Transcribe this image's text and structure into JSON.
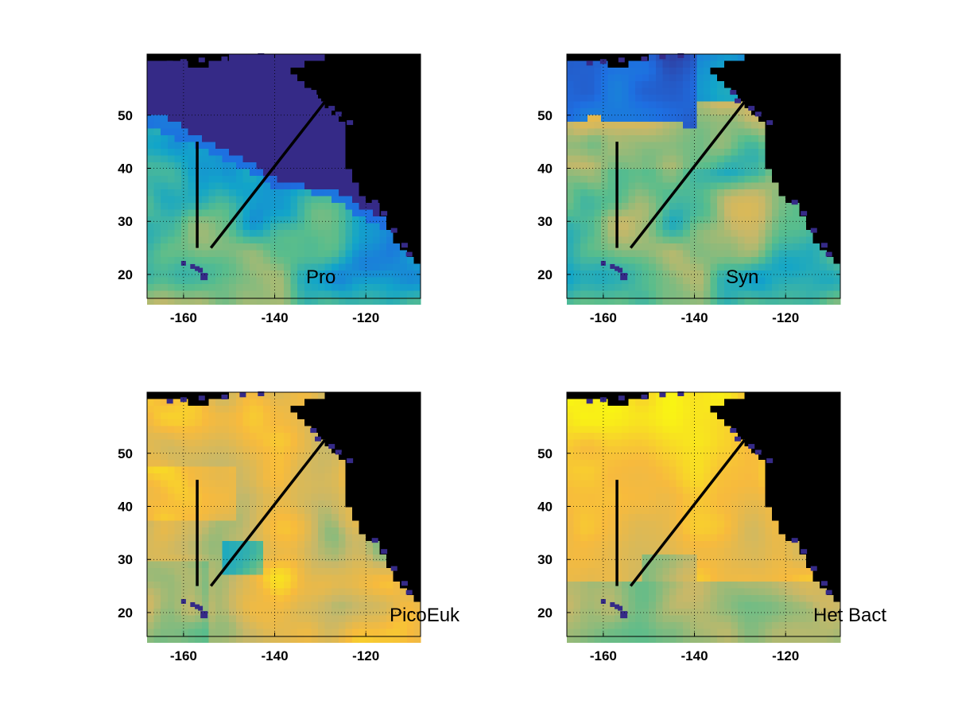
{
  "figure": {
    "panels": [
      {
        "label": "Pro",
        "style": "pro"
      },
      {
        "label": "Syn",
        "style": "syn"
      },
      {
        "label": "PicoEuk",
        "style": "picoeuk"
      },
      {
        "label": "Het Bact",
        "style": "hetbact"
      }
    ],
    "x_ticks": [
      -160,
      -140,
      -120
    ],
    "y_ticks": [
      20,
      30,
      40,
      50
    ],
    "x_range": [
      -168,
      -108
    ],
    "y_range": [
      15.5,
      61.5
    ],
    "transects": [
      {
        "from": [
          -157,
          45
        ],
        "to": [
          -157,
          25
        ]
      },
      {
        "from": [
          -154,
          25
        ],
        "to": [
          -129,
          52.5
        ]
      }
    ],
    "colors": {
      "land": "#000000",
      "coastal_pixels": "#352a87",
      "grid": "#000000",
      "transect": "#000000",
      "palette": [
        "#352a87",
        "#1e6ee1",
        "#12a5c9",
        "#59bd8c",
        "#c7b869",
        "#f7ba3d",
        "#f9fb0e"
      ]
    }
  }
}
